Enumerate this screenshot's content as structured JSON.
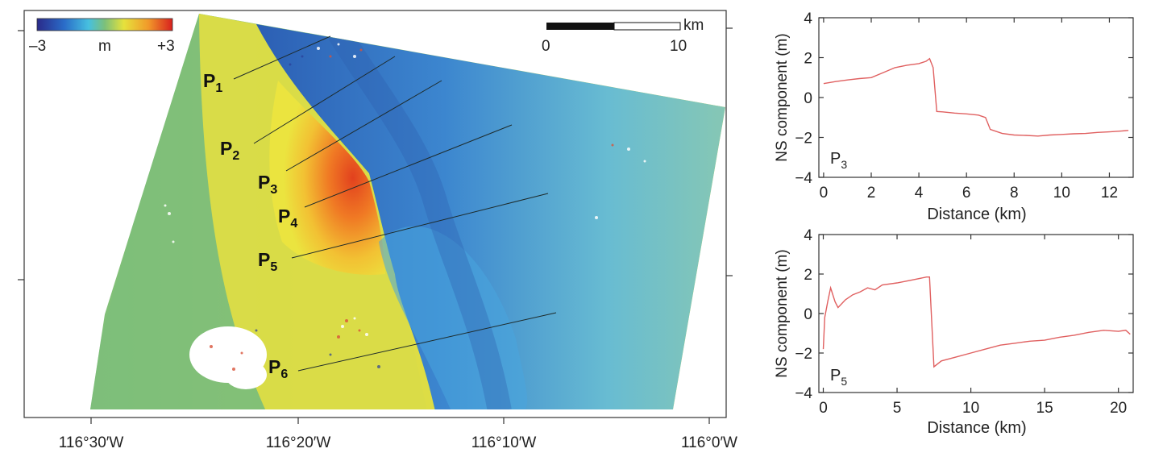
{
  "colors": {
    "map_blue": "#2a5fb0",
    "map_green": "#79bb7e",
    "map_yellow": "#eee23f",
    "map_red": "#e2491f",
    "profile_line": "#e06060"
  },
  "map": {
    "colorbar": {
      "min_label": "–3",
      "unit_label": "m",
      "max_label": "+3",
      "range": [
        -3,
        3
      ]
    },
    "scalebar": {
      "unit": "km",
      "start_label": "0",
      "end_label": "10"
    },
    "profiles": [
      {
        "label": "P",
        "sub": "1"
      },
      {
        "label": "P",
        "sub": "2"
      },
      {
        "label": "P",
        "sub": "3"
      },
      {
        "label": "P",
        "sub": "4"
      },
      {
        "label": "P",
        "sub": "5"
      },
      {
        "label": "P",
        "sub": "6"
      }
    ],
    "x_ticks": [
      "116°30′W",
      "116°20′W",
      "116°10′W",
      "116°0′W"
    ]
  },
  "chart_data": [
    {
      "type": "line",
      "panel_label": "P",
      "panel_sub": "3",
      "xlabel": "Distance (km)",
      "ylabel": "NS component (m)",
      "xlim": [
        -0.2,
        13
      ],
      "ylim": [
        -4,
        4
      ],
      "xticks": [
        0,
        2,
        4,
        6,
        8,
        10,
        12
      ],
      "yticks": [
        -4,
        -2,
        0,
        2,
        4
      ],
      "ytick_labels": [
        "−4",
        "−2",
        "0",
        "2",
        "4"
      ],
      "x": [
        0,
        0.5,
        1,
        1.5,
        2,
        2.5,
        3,
        3.5,
        4,
        4.3,
        4.45,
        4.6,
        4.75,
        5,
        5.5,
        6,
        6.5,
        6.8,
        7,
        7.5,
        8,
        8.5,
        9,
        9.5,
        10,
        10.5,
        11,
        11.5,
        12,
        12.5,
        12.8
      ],
      "y": [
        0.7,
        0.8,
        0.88,
        0.95,
        1.0,
        1.25,
        1.5,
        1.62,
        1.7,
        1.82,
        1.95,
        1.5,
        -0.7,
        -0.72,
        -0.78,
        -0.82,
        -0.88,
        -1.0,
        -1.6,
        -1.8,
        -1.88,
        -1.9,
        -1.93,
        -1.88,
        -1.85,
        -1.82,
        -1.8,
        -1.75,
        -1.72,
        -1.68,
        -1.65
      ]
    },
    {
      "type": "line",
      "panel_label": "P",
      "panel_sub": "5",
      "xlabel": "Distance (km)",
      "ylabel": "NS component (m)",
      "xlim": [
        -0.3,
        21
      ],
      "ylim": [
        -4,
        4
      ],
      "xticks": [
        0,
        5,
        10,
        15,
        20
      ],
      "yticks": [
        -4,
        -2,
        0,
        2,
        4
      ],
      "ytick_labels": [
        "−4",
        "−2",
        "0",
        "2",
        "4"
      ],
      "x": [
        0,
        0.1,
        0.3,
        0.5,
        0.8,
        1,
        1.5,
        2,
        2.5,
        3,
        3.5,
        4,
        5,
        6,
        7,
        7.2,
        7.5,
        8,
        9,
        10,
        11,
        12,
        13,
        14,
        15,
        16,
        17,
        18,
        19,
        20,
        20.5,
        20.8
      ],
      "y": [
        -1.8,
        -0.2,
        0.6,
        1.3,
        0.6,
        0.3,
        0.7,
        0.95,
        1.1,
        1.3,
        1.2,
        1.45,
        1.55,
        1.7,
        1.85,
        1.85,
        -2.7,
        -2.4,
        -2.2,
        -2.0,
        -1.8,
        -1.6,
        -1.5,
        -1.4,
        -1.35,
        -1.2,
        -1.1,
        -0.95,
        -0.85,
        -0.9,
        -0.85,
        -1.05
      ]
    }
  ]
}
